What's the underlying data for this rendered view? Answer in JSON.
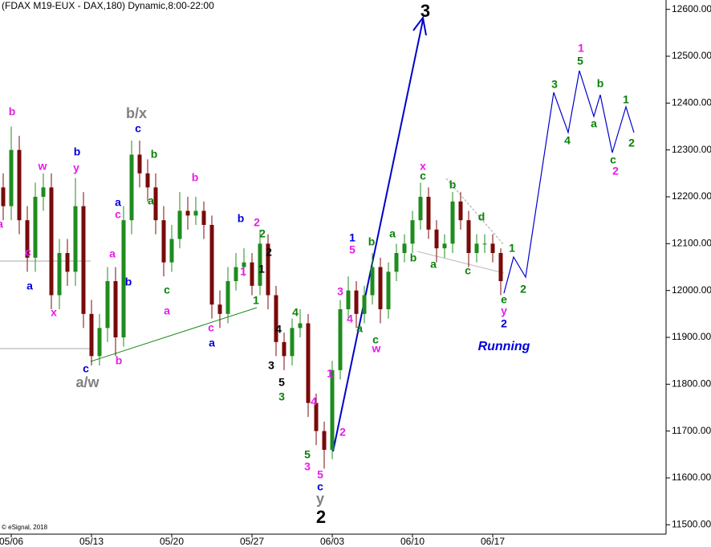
{
  "chart_data": {
    "type": "candlestick",
    "title": "(FDAX M19-EUX - DAX,180) Dynamic,8:00-22:00",
    "credit": "© eSignal, 2018",
    "categories": [
      null,
      "05/06",
      null,
      null,
      null,
      null,
      null,
      null,
      null,
      null,
      null,
      "05/13",
      null,
      null,
      null,
      null,
      null,
      null,
      null,
      null,
      null,
      "05/20",
      null,
      null,
      null,
      null,
      null,
      null,
      null,
      null,
      null,
      "05/27",
      null,
      null,
      null,
      null,
      null,
      null,
      null,
      null,
      null,
      "06/03",
      null,
      null,
      null,
      null,
      null,
      null,
      null,
      null,
      null,
      "06/10",
      null,
      null,
      null,
      null,
      null,
      null,
      null,
      null,
      null,
      "06/17",
      null
    ],
    "open": [
      12220,
      12180,
      12300,
      12150,
      12070,
      12200,
      12220,
      11990,
      12080,
      12040,
      12180,
      11950,
      11860,
      11920,
      12020,
      11900,
      12150,
      12290,
      12250,
      12220,
      12150,
      12060,
      12110,
      12170,
      12160,
      12170,
      12140,
      11970,
      11950,
      12020,
      12050,
      12060,
      12010,
      12100,
      11990,
      11890,
      11860,
      11920,
      11930,
      11760,
      11700,
      11660,
      11830,
      11960,
      12000,
      11950,
      11990,
      12050,
      11960,
      12040,
      12080,
      12100,
      12150,
      12200,
      12130,
      12090,
      12100,
      12190,
      12150,
      12080,
      12100,
      12100,
      12080
    ],
    "high": [
      12250,
      12350,
      12330,
      12180,
      12230,
      12250,
      12250,
      12110,
      12110,
      12240,
      12210,
      11980,
      11950,
      12050,
      12050,
      12180,
      12320,
      12320,
      12280,
      12250,
      12180,
      12140,
      12210,
      12200,
      12200,
      12190,
      12160,
      12000,
      12050,
      12080,
      12090,
      12080,
      12130,
      12120,
      12010,
      11910,
      11940,
      11960,
      11950,
      11780,
      11720,
      11850,
      11980,
      12030,
      12020,
      12010,
      12080,
      12070,
      12060,
      12100,
      12120,
      12170,
      12230,
      12220,
      12150,
      12120,
      12210,
      12210,
      12170,
      12120,
      12120,
      12120,
      12090
    ],
    "low": [
      12150,
      12150,
      12120,
      12040,
      12040,
      12170,
      11960,
      11960,
      12010,
      12010,
      11920,
      11840,
      11840,
      11890,
      11860,
      11880,
      12120,
      12220,
      12190,
      12120,
      12030,
      12040,
      12090,
      12130,
      12140,
      12110,
      11940,
      11920,
      11930,
      12000,
      12030,
      11990,
      11990,
      11960,
      11860,
      11830,
      11840,
      11900,
      11730,
      11670,
      11620,
      11640,
      11810,
      11940,
      11920,
      11930,
      11970,
      11930,
      11940,
      12020,
      12060,
      12080,
      12130,
      12110,
      12060,
      12070,
      12080,
      12130,
      12050,
      12060,
      12080,
      12060,
      11990
    ],
    "close": [
      12180,
      12300,
      12150,
      12070,
      12200,
      12220,
      11990,
      12080,
      12040,
      12180,
      11950,
      11860,
      11920,
      12020,
      11900,
      12150,
      12290,
      12250,
      12220,
      12150,
      12060,
      12110,
      12170,
      12160,
      12170,
      12140,
      11970,
      11950,
      12020,
      12050,
      12060,
      12010,
      12100,
      11990,
      11890,
      11860,
      11920,
      11930,
      11760,
      11700,
      11660,
      11830,
      11960,
      12000,
      11950,
      11990,
      12050,
      11960,
      12040,
      12080,
      12100,
      12150,
      12200,
      12130,
      12090,
      12100,
      12190,
      12150,
      12080,
      12100,
      12100,
      12080,
      12020
    ],
    "up_color": "#1e8c1e",
    "down_color": "#7a0a0a",
    "ylim": [
      11480,
      12620
    ],
    "yticks": [
      {
        "value": 11500,
        "label": "11500.00"
      },
      {
        "value": 11600,
        "label": "11600.00"
      },
      {
        "value": 11700,
        "label": "11700.00"
      },
      {
        "value": 11800,
        "label": "11800.00"
      },
      {
        "value": 11900,
        "label": "11900.00"
      },
      {
        "value": 12000,
        "label": "12000.00"
      },
      {
        "value": 12100,
        "label": "12100.00"
      },
      {
        "value": 12200,
        "label": "12200.00"
      },
      {
        "value": 12300,
        "label": "12300.00"
      },
      {
        "value": 12400,
        "label": "12400.00"
      },
      {
        "value": 12500,
        "label": "12500.00"
      },
      {
        "value": 12600,
        "label": "12600.00"
      }
    ],
    "wave_labels": [
      "b",
      "a",
      "c",
      "a",
      "w",
      "b",
      "y",
      "x",
      "c",
      "a/w",
      "b",
      "b/x",
      "c",
      "b",
      "a",
      "c",
      "a",
      "b",
      "a",
      "c",
      "a",
      "b",
      "c",
      "a",
      "b",
      "2",
      "1",
      "2",
      "2",
      "1",
      "1",
      "4",
      "4",
      "3",
      "5",
      "3",
      "4",
      "5",
      "3",
      "1",
      "2",
      "5",
      "c",
      "y",
      "2",
      "3",
      "1",
      "5",
      "3",
      "4",
      "a",
      "b",
      "c",
      "w",
      "a",
      "b",
      "x",
      "c",
      "a",
      "b",
      "c",
      "d",
      "1",
      "2",
      "e",
      "y",
      "2",
      "Running",
      "3",
      "4",
      "1",
      "5",
      "b",
      "a",
      "1",
      "c",
      "2",
      "2"
    ]
  }
}
